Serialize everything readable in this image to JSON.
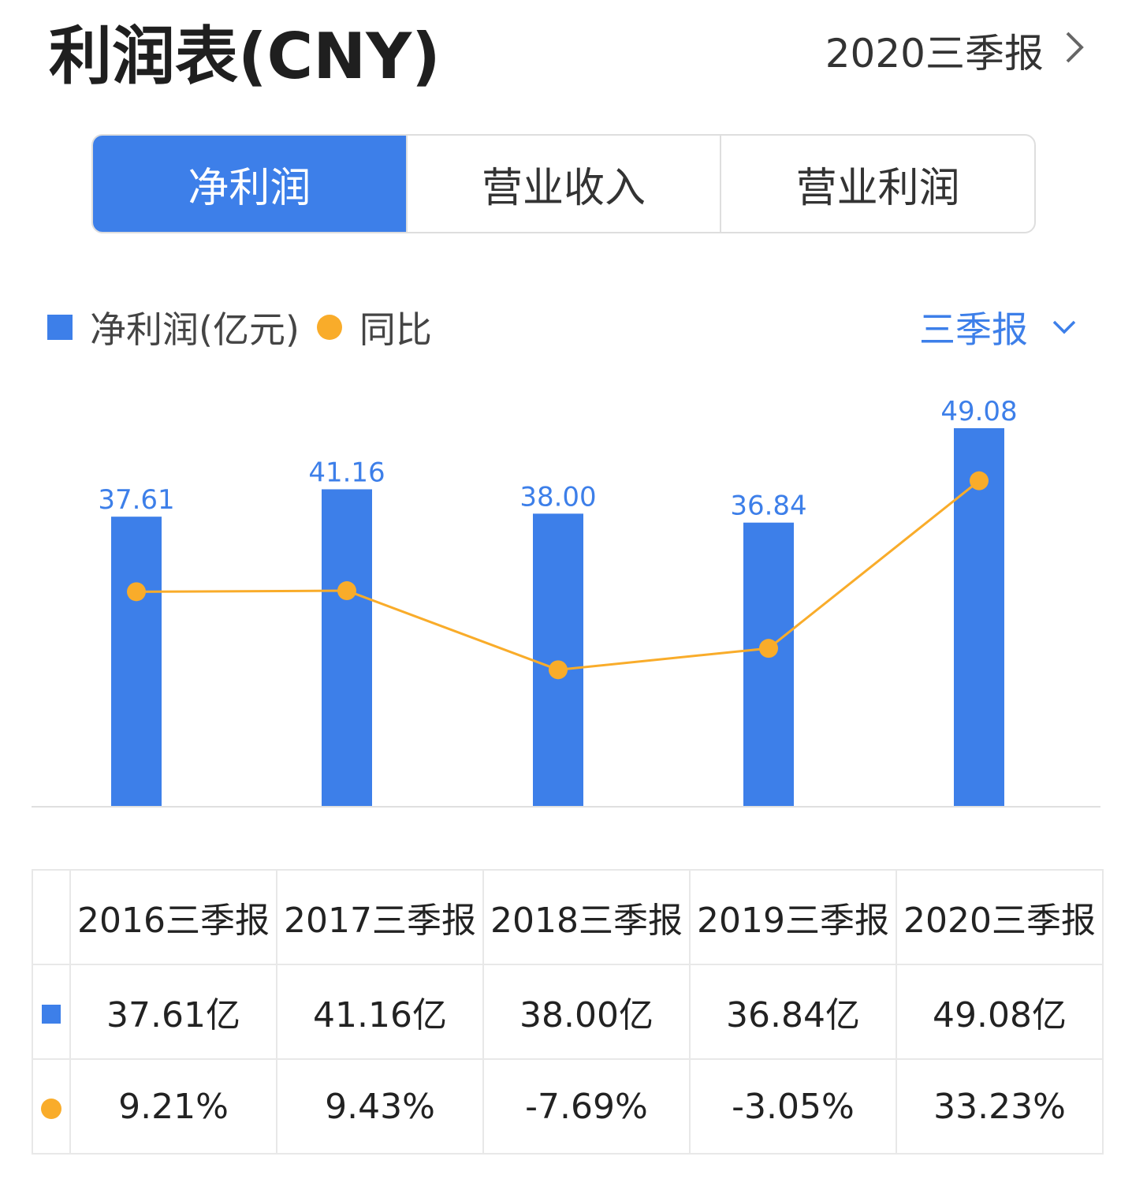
{
  "header": {
    "title": "利润表(CNY)",
    "period_link": "2020三季报",
    "chevron_icon": "chevron-right-icon"
  },
  "tabs": [
    {
      "label": "净利润",
      "active": true
    },
    {
      "label": "营业收入",
      "active": false
    },
    {
      "label": "营业利润",
      "active": false
    }
  ],
  "legend": {
    "bar_label": "净利润(亿元)",
    "line_label": "同比",
    "period_select": "三季报",
    "dropdown_icon": "chevron-down-icon"
  },
  "colors": {
    "bar": "#3d7fe9",
    "line": "#f9ac2a",
    "positive": "#2fb57a",
    "negative": "#e84a4a"
  },
  "chart_data": {
    "type": "bar",
    "categories": [
      "2016三季报",
      "2017三季报",
      "2018三季报",
      "2019三季报",
      "2020三季报"
    ],
    "series": [
      {
        "name": "净利润(亿元)",
        "type": "bar",
        "values": [
          37.61,
          41.16,
          38.0,
          36.84,
          49.08
        ],
        "labels": [
          "37.61",
          "41.16",
          "38.00",
          "36.84",
          "49.08"
        ]
      },
      {
        "name": "同比",
        "type": "line",
        "values": [
          9.21,
          9.43,
          -7.69,
          -3.05,
          33.23
        ]
      }
    ],
    "ylim_bar": [
      0,
      49.08
    ],
    "ylim_line": [
      -30,
      40
    ]
  },
  "table": {
    "columns": [
      "2016三季报",
      "2017三季报",
      "2018三季报",
      "2019三季报",
      "2020三季报"
    ],
    "rows": [
      {
        "icon": "bar-legend-icon",
        "values": [
          "37.61亿",
          "41.16亿",
          "38.00亿",
          "36.84亿",
          "49.08亿"
        ]
      },
      {
        "icon": "line-legend-icon",
        "values": [
          "9.21%",
          "9.43%",
          "-7.69%",
          "-3.05%",
          "33.23%"
        ]
      }
    ]
  }
}
